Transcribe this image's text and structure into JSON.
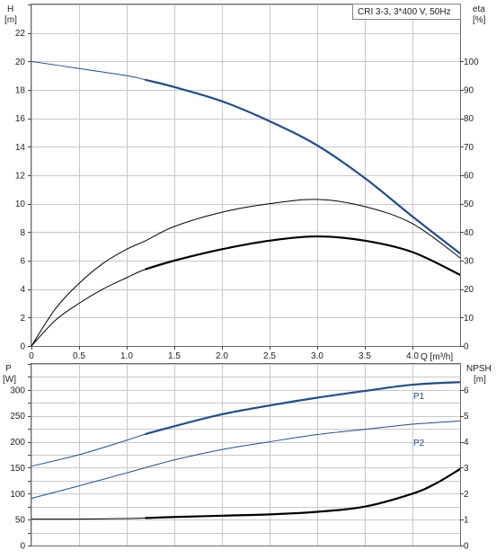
{
  "legend_text": "CRI 3-3, 3*400 V, 50Hz",
  "chart_data": [
    {
      "type": "line",
      "panel": "top",
      "axes": {
        "x": {
          "label": "Q [m³/h]",
          "ticks": [
            "0",
            "0.5",
            "1.0",
            "1.5",
            "2.0",
            "2.5",
            "3.0",
            "3.5",
            "4.0"
          ],
          "range": [
            0,
            4.5
          ]
        },
        "y_left": {
          "label_line1": "H",
          "label_line2": "[m]",
          "ticks": [
            "0",
            "2",
            "4",
            "6",
            "8",
            "10",
            "12",
            "14",
            "16",
            "18",
            "20",
            "22"
          ],
          "range": [
            0,
            24
          ]
        },
        "y_right": {
          "label_line1": "eta",
          "label_line2": "[%]",
          "ticks": [
            "0",
            "10",
            "20",
            "30",
            "40",
            "50",
            "60",
            "70",
            "80",
            "90",
            "100"
          ],
          "range": [
            0,
            120
          ]
        }
      },
      "grid": true,
      "series": [
        {
          "axis": "left",
          "color": "#1f4e8c",
          "role": "H",
          "x": [
            0,
            0.5,
            1.0,
            1.2,
            1.5,
            2.0,
            2.5,
            3.0,
            3.5,
            4.0,
            4.5
          ],
          "y": [
            20.0,
            19.5,
            19.0,
            18.7,
            18.2,
            17.2,
            15.8,
            14.1,
            11.8,
            9.1,
            6.5
          ],
          "highlight_from": 1.2
        },
        {
          "axis": "right",
          "color": "#000000",
          "role": "eta",
          "x": [
            0,
            0.25,
            0.5,
            0.75,
            1.0,
            1.2,
            1.5,
            2.0,
            2.5,
            3.0,
            3.5,
            4.0,
            4.5
          ],
          "y": [
            0,
            13,
            22,
            29,
            34,
            37,
            42,
            47,
            50,
            51.5,
            49,
            43,
            31
          ]
        },
        {
          "axis": "right",
          "color": "#000000",
          "role": "eta-bold",
          "x": [
            0,
            0.25,
            0.5,
            0.75,
            1.0,
            1.2,
            1.5,
            2.0,
            2.5,
            3.0,
            3.5,
            4.0,
            4.5
          ],
          "y": [
            0,
            9,
            15,
            20,
            24,
            27,
            30,
            34,
            37,
            38.5,
            37,
            33,
            25
          ],
          "highlight_from": 1.2
        }
      ]
    },
    {
      "type": "line",
      "panel": "bottom",
      "axes": {
        "x": {
          "range": [
            0,
            4.5
          ]
        },
        "y_left": {
          "label_line1": "P",
          "label_line2": "[W]",
          "ticks": [
            "0",
            "50",
            "100",
            "150",
            "200",
            "250",
            "300"
          ],
          "range": [
            0,
            350
          ]
        },
        "y_right": {
          "label_line1": "NPSH",
          "label_line2": "[m]",
          "ticks": [
            "0",
            "1",
            "2",
            "3",
            "4",
            "5",
            "6"
          ],
          "range": [
            0,
            7
          ]
        }
      },
      "grid": true,
      "series": [
        {
          "name": "P1",
          "axis": "left",
          "color": "#1f4e8c",
          "x": [
            0,
            0.5,
            1.0,
            1.2,
            1.5,
            2.0,
            2.5,
            3.0,
            3.5,
            4.0,
            4.5
          ],
          "y": [
            153,
            175,
            203,
            215,
            230,
            253,
            270,
            285,
            298,
            310,
            315
          ],
          "highlight_from": 1.2
        },
        {
          "name": "P2",
          "axis": "left",
          "color": "#1f4e8c",
          "x": [
            0,
            0.5,
            1.0,
            1.5,
            2.0,
            2.5,
            3.0,
            3.5,
            4.0,
            4.5
          ],
          "y": [
            91,
            115,
            140,
            165,
            185,
            200,
            214,
            224,
            234,
            240
          ]
        },
        {
          "axis": "right",
          "color": "#000000",
          "role": "NPSH",
          "x": [
            0,
            0.5,
            1.0,
            1.2,
            1.5,
            2.0,
            2.5,
            3.0,
            3.5,
            4.0,
            4.25,
            4.5
          ],
          "y": [
            1.02,
            1.02,
            1.04,
            1.06,
            1.1,
            1.15,
            1.2,
            1.3,
            1.5,
            2.0,
            2.4,
            2.95
          ],
          "highlight_from": 1.2
        }
      ]
    }
  ]
}
